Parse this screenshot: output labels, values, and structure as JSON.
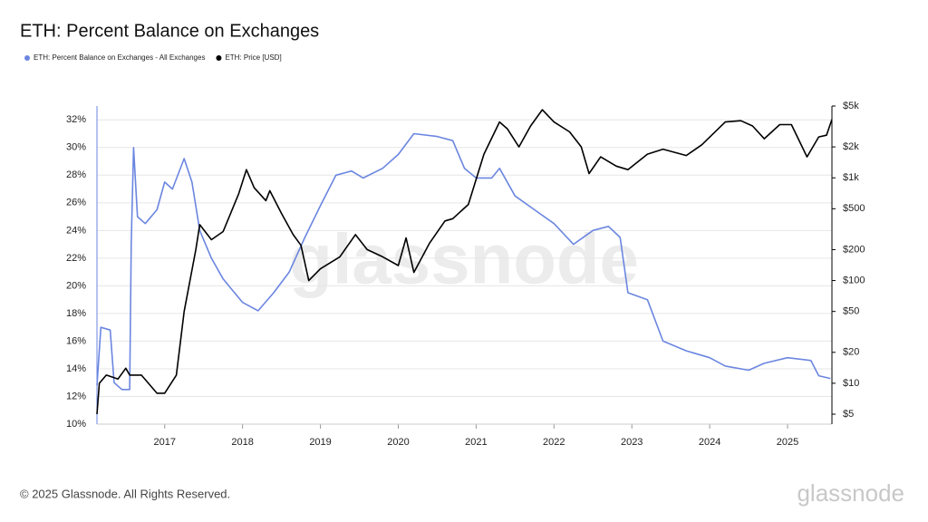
{
  "chart_data": {
    "type": "line",
    "title": "ETH: Percent Balance on Exchanges",
    "watermark": "glassnode",
    "series": [
      {
        "name": "ETH: Percent Balance on Exchanges - All Exchanges",
        "color": "#6b86e0",
        "x": [
          2016.13,
          2016.18,
          2016.3,
          2016.35,
          2016.45,
          2016.55,
          2016.57,
          2016.6,
          2016.65,
          2016.75,
          2016.9,
          2017.0,
          2017.1,
          2017.25,
          2017.35,
          2017.45,
          2017.6,
          2017.75,
          2018.0,
          2018.2,
          2018.4,
          2018.6,
          2018.8,
          2019.0,
          2019.2,
          2019.4,
          2019.55,
          2019.8,
          2020.0,
          2020.2,
          2020.5,
          2020.7,
          2020.85,
          2021.0,
          2021.2,
          2021.3,
          2021.5,
          2021.75,
          2022.0,
          2022.25,
          2022.5,
          2022.7,
          2022.85,
          2022.95,
          2023.2,
          2023.4,
          2023.7,
          2024.0,
          2024.2,
          2024.5,
          2024.7,
          2025.0,
          2025.3,
          2025.4,
          2025.55
        ],
        "values": [
          12.8,
          17,
          16.8,
          13,
          12.5,
          12.5,
          23,
          30,
          25,
          24.5,
          25.5,
          27.5,
          27,
          29.2,
          27.5,
          24,
          22,
          20.5,
          18.8,
          18.2,
          19.5,
          21,
          23.5,
          25.8,
          28,
          28.3,
          27.8,
          28.5,
          29.5,
          31,
          30.8,
          30.5,
          28.5,
          27.8,
          27.8,
          28.5,
          26.5,
          25.5,
          24.5,
          23,
          24,
          24.3,
          23.5,
          19.5,
          19,
          16,
          15.3,
          14.8,
          14.2,
          13.9,
          14.4,
          14.8,
          14.6,
          13.5,
          13.3
        ]
      },
      {
        "name": "ETH: Price [USD]",
        "color": "#000000",
        "axis": "y2",
        "x": [
          2016.13,
          2016.16,
          2016.25,
          2016.4,
          2016.5,
          2016.55,
          2016.7,
          2016.9,
          2017.0,
          2017.15,
          2017.25,
          2017.4,
          2017.45,
          2017.6,
          2017.75,
          2017.95,
          2018.05,
          2018.15,
          2018.3,
          2018.35,
          2018.5,
          2018.65,
          2018.75,
          2018.85,
          2019.0,
          2019.25,
          2019.45,
          2019.6,
          2019.8,
          2020.0,
          2020.1,
          2020.2,
          2020.4,
          2020.6,
          2020.7,
          2020.9,
          2021.1,
          2021.3,
          2021.4,
          2021.55,
          2021.7,
          2021.85,
          2022.0,
          2022.2,
          2022.35,
          2022.45,
          2022.6,
          2022.8,
          2022.95,
          2023.2,
          2023.4,
          2023.7,
          2023.9,
          2024.2,
          2024.4,
          2024.55,
          2024.7,
          2024.9,
          2025.05,
          2025.25,
          2025.4,
          2025.5,
          2025.57
        ],
        "values": [
          5,
          10,
          12,
          11,
          14,
          12,
          12,
          8,
          8,
          12,
          50,
          200,
          350,
          250,
          300,
          700,
          1200,
          800,
          600,
          750,
          450,
          280,
          220,
          100,
          130,
          170,
          280,
          200,
          170,
          140,
          260,
          120,
          230,
          380,
          400,
          550,
          1700,
          3500,
          3000,
          2000,
          3200,
          4600,
          3500,
          2800,
          2000,
          1100,
          1600,
          1300,
          1200,
          1700,
          1900,
          1650,
          2100,
          3500,
          3600,
          3200,
          2400,
          3300,
          3300,
          1600,
          2500,
          2600,
          3700
        ]
      }
    ],
    "xlim": [
      2016.13,
      2025.57
    ],
    "xticks": [
      2017,
      2018,
      2019,
      2020,
      2021,
      2022,
      2023,
      2024,
      2025
    ],
    "ylim": [
      10,
      33
    ],
    "yticks": [
      {
        "value": 10,
        "label": "10%"
      },
      {
        "value": 12,
        "label": "12%"
      },
      {
        "value": 14,
        "label": "14%"
      },
      {
        "value": 16,
        "label": "16%"
      },
      {
        "value": 18,
        "label": "18%"
      },
      {
        "value": 20,
        "label": "20%"
      },
      {
        "value": 22,
        "label": "22%"
      },
      {
        "value": 24,
        "label": "24%"
      },
      {
        "value": 26,
        "label": "26%"
      },
      {
        "value": 28,
        "label": "28%"
      },
      {
        "value": 30,
        "label": "30%"
      },
      {
        "value": 32,
        "label": "32%"
      }
    ],
    "y2lim": [
      4,
      5000
    ],
    "y2_log": true,
    "y2ticks": [
      {
        "value": 5,
        "label": "$5"
      },
      {
        "value": 10,
        "label": "$10"
      },
      {
        "value": 20,
        "label": "$20"
      },
      {
        "value": 50,
        "label": "$50"
      },
      {
        "value": 100,
        "label": "$100"
      },
      {
        "value": 200,
        "label": "$200"
      },
      {
        "value": 500,
        "label": "$500"
      },
      {
        "value": 1000,
        "label": "$1k"
      },
      {
        "value": 2000,
        "label": "$2k"
      },
      {
        "value": 5000,
        "label": "$5k"
      }
    ],
    "grid": true
  },
  "footer": {
    "copyright": "© 2025 Glassnode. All Rights Reserved.",
    "logo": "glassnode"
  }
}
